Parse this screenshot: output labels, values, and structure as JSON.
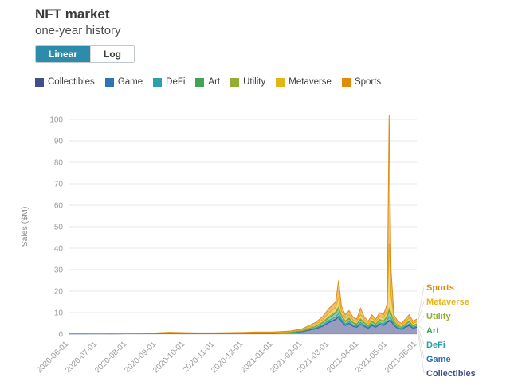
{
  "header": {
    "title": "NFT market",
    "subtitle": "one-year history"
  },
  "toggle": {
    "options": [
      {
        "label": "Linear",
        "active": true
      },
      {
        "label": "Log",
        "active": false
      }
    ]
  },
  "legend": {
    "items": [
      {
        "label": "Collectibles",
        "color": "#434c8c"
      },
      {
        "label": "Game",
        "color": "#2d74b5"
      },
      {
        "label": "DeFi",
        "color": "#2aa0a8"
      },
      {
        "label": "Art",
        "color": "#3fa455"
      },
      {
        "label": "Utility",
        "color": "#94ad33"
      },
      {
        "label": "Metaverse",
        "color": "#e4b613"
      },
      {
        "label": "Sports",
        "color": "#e08b0c"
      }
    ]
  },
  "chart_data": {
    "type": "area",
    "stacked": true,
    "title": "",
    "xlabel": "",
    "ylabel": "Sales ($M)",
    "ylim": [
      0,
      105
    ],
    "grid": true,
    "legend_position": "top",
    "yticks": [
      0,
      10,
      20,
      30,
      40,
      50,
      60,
      70,
      80,
      90,
      100
    ],
    "xticks": [
      "2020-06-01",
      "2020-07-01",
      "2020-08-01",
      "2020-09-01",
      "2020-10-01",
      "2020-11-01",
      "2020-12-01",
      "2021-01-01",
      "2021-02-01",
      "2021-03-01",
      "2021-04-01",
      "2021-05-01",
      "2021-06-01"
    ],
    "x": [
      "2020-06-01",
      "2020-06-15",
      "2020-07-01",
      "2020-07-15",
      "2020-08-01",
      "2020-08-15",
      "2020-09-01",
      "2020-09-15",
      "2020-10-01",
      "2020-10-15",
      "2020-11-01",
      "2020-11-15",
      "2020-12-01",
      "2020-12-15",
      "2021-01-01",
      "2021-01-10",
      "2021-01-20",
      "2021-02-01",
      "2021-02-08",
      "2021-02-15",
      "2021-02-22",
      "2021-03-01",
      "2021-03-08",
      "2021-03-11",
      "2021-03-14",
      "2021-03-18",
      "2021-03-22",
      "2021-03-26",
      "2021-03-30",
      "2021-04-03",
      "2021-04-07",
      "2021-04-11",
      "2021-04-15",
      "2021-04-19",
      "2021-04-23",
      "2021-04-27",
      "2021-05-01",
      "2021-05-03",
      "2021-05-05",
      "2021-05-08",
      "2021-05-12",
      "2021-05-16",
      "2021-05-20",
      "2021-05-24",
      "2021-05-28",
      "2021-06-01"
    ],
    "series": [
      {
        "name": "Collectibles",
        "color": "#434c8c",
        "values": [
          0.14,
          0.14,
          0.16,
          0.14,
          0.18,
          0.22,
          0.27,
          0.4,
          0.32,
          0.27,
          0.27,
          0.32,
          0.36,
          0.45,
          0.45,
          0.54,
          0.68,
          1.1,
          1.8,
          2.5,
          3.6,
          5.4,
          6.8,
          8,
          5.8,
          4,
          5,
          3.6,
          3.2,
          4.5,
          3.6,
          2.7,
          4,
          3.2,
          4.5,
          4,
          5.5,
          6,
          6,
          4,
          2.7,
          2.2,
          3.2,
          4,
          2.7,
          3.2
        ]
      },
      {
        "name": "Game",
        "color": "#2d74b5",
        "values": [
          0.01,
          0.01,
          0.01,
          0.01,
          0.01,
          0.01,
          0.01,
          0.02,
          0.01,
          0.01,
          0.01,
          0.01,
          0.02,
          0.02,
          0.02,
          0.02,
          0.03,
          0.05,
          0.1,
          0.1,
          0.15,
          0.25,
          0.3,
          0.3,
          0.25,
          0.2,
          0.2,
          0.15,
          0.15,
          0.2,
          0.15,
          0.1,
          0.2,
          0.15,
          0.2,
          0.2,
          0.25,
          0.5,
          0.3,
          0.2,
          0.1,
          0.1,
          0.15,
          0.2,
          0.1,
          0.15
        ]
      },
      {
        "name": "DeFi",
        "color": "#2aa0a8",
        "values": [
          0.02,
          0.02,
          0.02,
          0.02,
          0.02,
          0.03,
          0.04,
          0.05,
          0.04,
          0.04,
          0.04,
          0.04,
          0.05,
          0.06,
          0.06,
          0.07,
          0.09,
          0.15,
          0.25,
          0.35,
          0.5,
          0.7,
          0.9,
          1.2,
          0.8,
          0.55,
          0.65,
          0.5,
          0.4,
          0.7,
          0.5,
          0.35,
          0.55,
          0.4,
          0.6,
          0.55,
          0.8,
          1.5,
          1,
          0.55,
          0.35,
          0.3,
          0.4,
          0.55,
          0.35,
          0.4
        ]
      },
      {
        "name": "Art",
        "color": "#3fa455",
        "values": [
          0.04,
          0.04,
          0.04,
          0.04,
          0.05,
          0.06,
          0.07,
          0.11,
          0.08,
          0.07,
          0.07,
          0.08,
          0.1,
          0.12,
          0.12,
          0.14,
          0.18,
          0.3,
          0.5,
          0.65,
          1,
          1.4,
          1.8,
          2.5,
          1.6,
          1.1,
          1.3,
          1,
          0.85,
          1.3,
          1,
          0.7,
          1.1,
          0.85,
          1.2,
          1.1,
          1.6,
          3,
          2,
          1.1,
          0.7,
          0.6,
          0.85,
          1.1,
          0.7,
          0.85
        ]
      },
      {
        "name": "Utility",
        "color": "#94ad33",
        "values": [
          0.01,
          0.01,
          0.01,
          0.01,
          0.02,
          0.02,
          0.02,
          0.04,
          0.03,
          0.02,
          0.02,
          0.03,
          0.03,
          0.04,
          0.04,
          0.05,
          0.06,
          0.1,
          0.15,
          0.2,
          0.3,
          0.5,
          0.6,
          0.8,
          0.5,
          0.35,
          0.45,
          0.3,
          0.3,
          0.5,
          0.3,
          0.25,
          0.35,
          0.3,
          0.4,
          0.35,
          0.55,
          1,
          0.7,
          0.35,
          0.25,
          0.2,
          0.3,
          0.35,
          0.25,
          0.3
        ]
      },
      {
        "name": "Metaverse",
        "color": "#e4b613",
        "values": [
          0.04,
          0.04,
          0.05,
          0.04,
          0.05,
          0.07,
          0.08,
          0.12,
          0.09,
          0.08,
          0.08,
          0.09,
          0.1,
          0.13,
          0.13,
          0.16,
          0.2,
          0.3,
          0.5,
          0.7,
          1,
          1.6,
          2,
          4.2,
          1.7,
          1.2,
          1.4,
          1,
          0.9,
          1.8,
          1,
          0.8,
          1.2,
          0.9,
          1.3,
          1.2,
          2.1,
          30,
          8,
          1.2,
          0.8,
          0.7,
          0.9,
          1.2,
          0.8,
          0.9
        ]
      },
      {
        "name": "Sports",
        "color": "#e08b0c",
        "values": [
          0.04,
          0.04,
          0.06,
          0.04,
          0.07,
          0.09,
          0.11,
          0.16,
          0.13,
          0.11,
          0.11,
          0.13,
          0.14,
          0.18,
          0.18,
          0.22,
          0.26,
          0.5,
          0.7,
          1,
          1.45,
          2.15,
          2.6,
          8,
          2.35,
          1.6,
          2,
          1.45,
          1.2,
          3,
          1.45,
          1.1,
          1.6,
          1.2,
          1.8,
          1.6,
          3.2,
          60,
          12,
          1.6,
          1.1,
          0.9,
          1.2,
          1.6,
          1.1,
          1.2
        ]
      }
    ],
    "right_labels": [
      "Sports",
      "Metaverse",
      "Utility",
      "Art",
      "DeFi",
      "Game",
      "Collectibles"
    ]
  }
}
